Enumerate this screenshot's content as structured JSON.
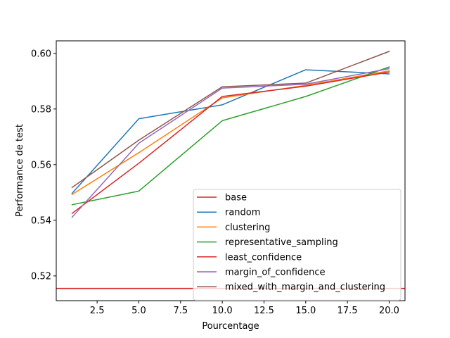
{
  "chart_data": {
    "type": "line",
    "xlabel": "Pourcentage",
    "ylabel": "Performance de test",
    "xlim": [
      0.05,
      20.95
    ],
    "ylim": [
      0.5111,
      0.6045
    ],
    "xticks": [
      2.5,
      5.0,
      7.5,
      10.0,
      12.5,
      15.0,
      17.5,
      20.0
    ],
    "xtick_labels": [
      "2.5",
      "5.0",
      "7.5",
      "10.0",
      "12.5",
      "15.0",
      "17.5",
      "20.0"
    ],
    "yticks": [
      0.52,
      0.54,
      0.56,
      0.58,
      0.6
    ],
    "ytick_labels": [
      "0.52",
      "0.54",
      "0.56",
      "0.58",
      "0.60"
    ],
    "grid": false,
    "legend_position": "lower-right",
    "x": [
      1,
      5,
      10,
      15,
      20
    ],
    "baseline": {
      "name": "base",
      "value": 0.5155,
      "color": "#d62728"
    },
    "series": [
      {
        "name": "random",
        "color": "#1f77b4",
        "values": [
          0.5497,
          0.5765,
          0.5815,
          0.5941,
          0.5926
        ]
      },
      {
        "name": "clustering",
        "color": "#ff7f0e",
        "values": [
          0.5493,
          0.5643,
          0.584,
          0.5885,
          0.5937
        ]
      },
      {
        "name": "representative_sampling",
        "color": "#2ca02c",
        "values": [
          0.5456,
          0.5505,
          0.5758,
          0.5845,
          0.5951
        ]
      },
      {
        "name": "least_confidence",
        "color": "#d62728",
        "values": [
          0.5425,
          0.5605,
          0.5845,
          0.5882,
          0.5933
        ]
      },
      {
        "name": "margin_of_confidence",
        "color": "#9467bd",
        "values": [
          0.5411,
          0.5677,
          0.5875,
          0.5889,
          0.5945
        ]
      },
      {
        "name": "mixed_with_margin_and_clustering",
        "color": "#8c564b",
        "values": [
          0.5518,
          0.5688,
          0.588,
          0.5893,
          0.6007
        ]
      }
    ]
  }
}
